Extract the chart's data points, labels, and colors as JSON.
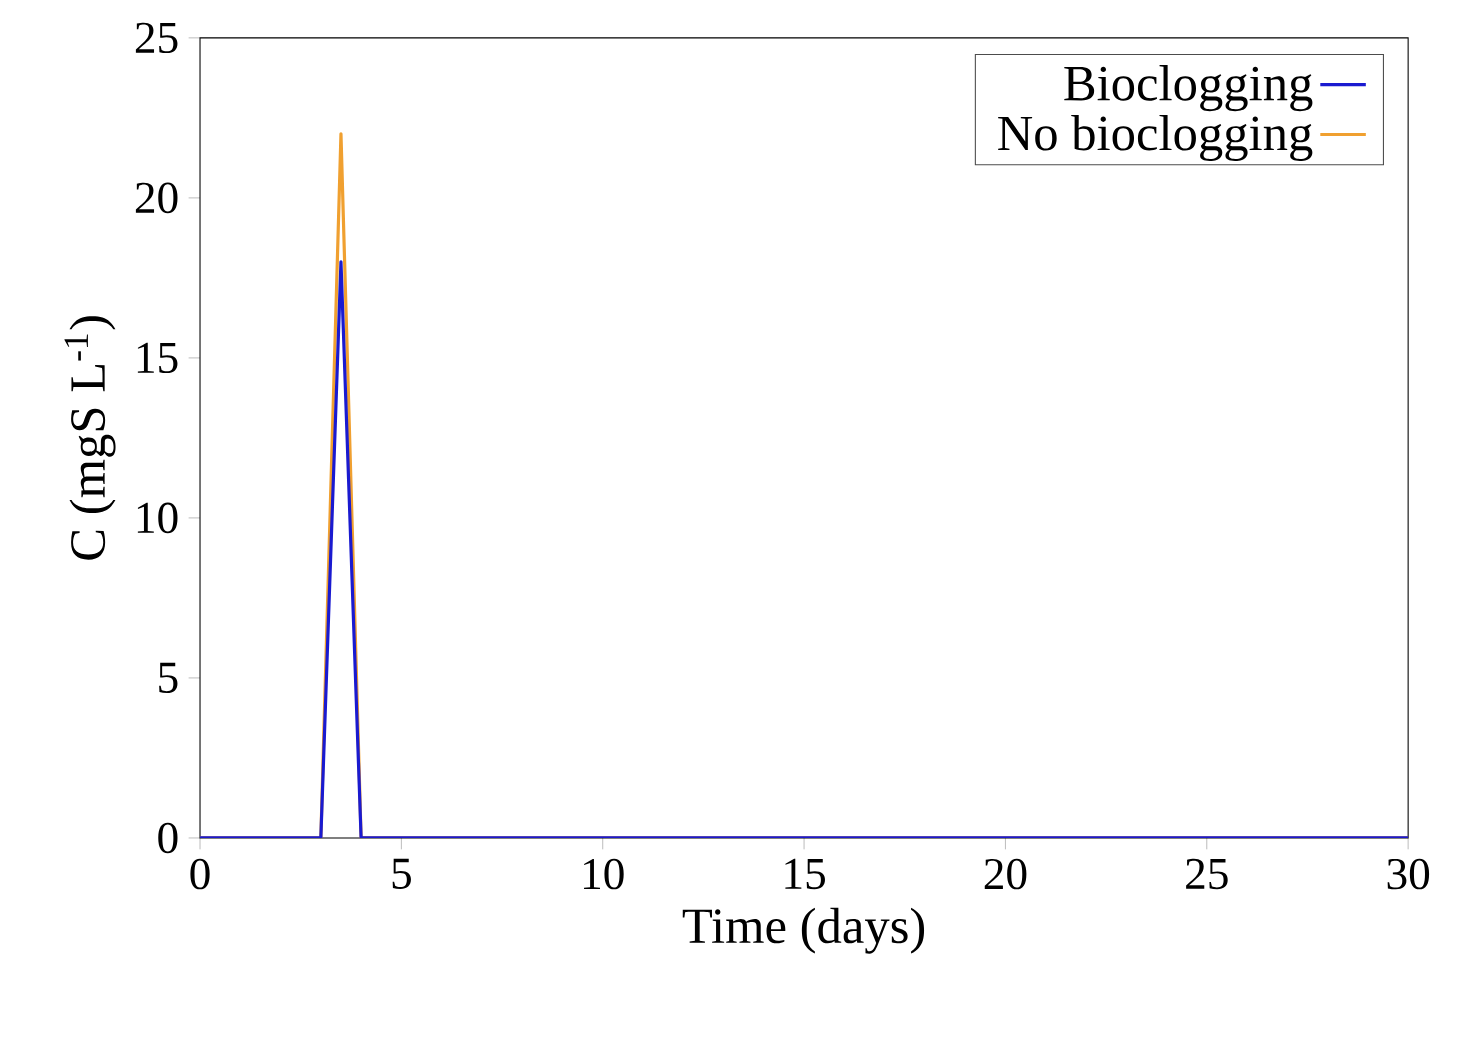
{
  "chart_data": {
    "type": "line",
    "xlabel": "Time (days)",
    "ylabel": "C (mgS L$^{-1}$)",
    "xlim": [
      0,
      30
    ],
    "xticks": [
      0,
      5,
      10,
      15,
      20,
      25,
      30
    ],
    "ylim": [
      0,
      25
    ],
    "yticks": [
      0,
      5,
      10,
      15,
      20,
      25
    ],
    "grid": false,
    "legend": "top right",
    "marker": "none",
    "line_style": "solid",
    "series": [
      {
        "name": "Bioclogging",
        "color": "#1a1ad0",
        "x": [
          0,
          3,
          3.5,
          4,
          30
        ],
        "values": [
          0,
          0,
          18,
          0,
          0
        ]
      },
      {
        "name": "No bioclogging",
        "color": "#f0a030",
        "x": [
          0,
          3,
          3.5,
          4,
          30
        ],
        "values": [
          0,
          0,
          22,
          0,
          0
        ]
      }
    ]
  }
}
